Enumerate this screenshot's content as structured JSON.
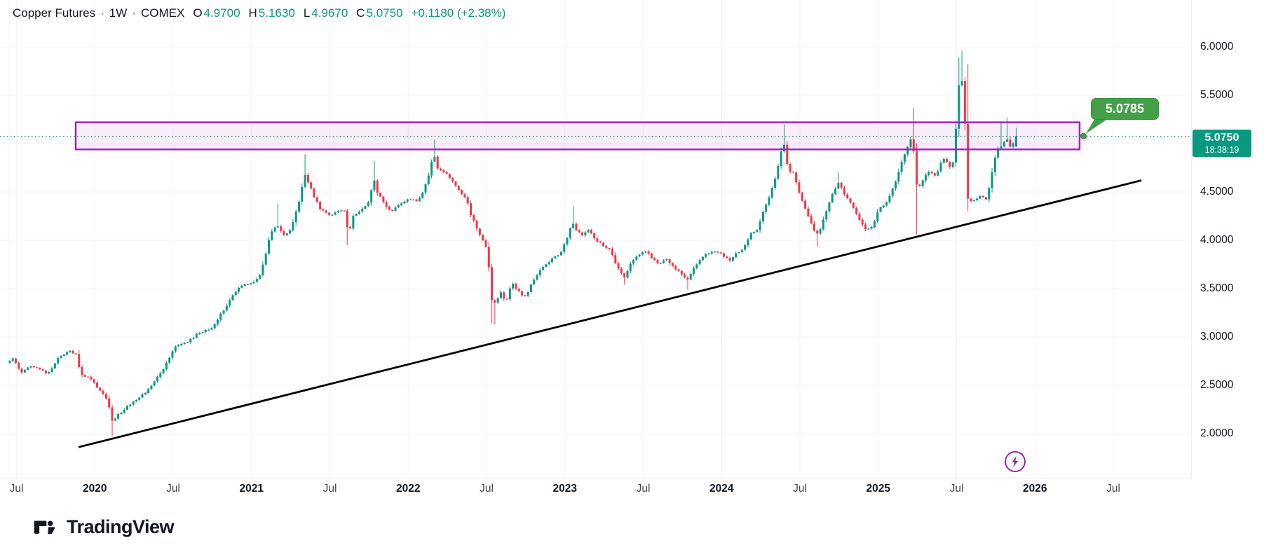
{
  "header": {
    "symbol": "Copper Futures",
    "separator": "·",
    "interval": "1W",
    "exchange": "COMEX",
    "ohlc": {
      "open_label": "O",
      "open": "4.9700",
      "high_label": "H",
      "high": "5.1630",
      "low_label": "L",
      "low": "4.9670",
      "close_label": "C",
      "close": "5.0750",
      "change": "+0.1180 (+2.38%)"
    }
  },
  "price_axis": {
    "ticks": [
      {
        "label": "6.0000",
        "value": 6.0
      },
      {
        "label": "5.5000",
        "value": 5.5
      },
      {
        "label": "4.5000",
        "value": 4.5
      },
      {
        "label": "4.0000",
        "value": 4.0
      },
      {
        "label": "3.5000",
        "value": 3.5
      },
      {
        "label": "3.0000",
        "value": 3.0
      },
      {
        "label": "2.5000",
        "value": 2.5
      },
      {
        "label": "2.0000",
        "value": 2.0
      }
    ],
    "last_price_badge": {
      "price": "5.0750",
      "countdown": "18:38:19"
    }
  },
  "time_axis": {
    "ticks": [
      {
        "label": "Jul",
        "t": 2019.5,
        "bold": false
      },
      {
        "label": "2020",
        "t": 2020.0,
        "bold": true
      },
      {
        "label": "Jul",
        "t": 2020.5,
        "bold": false
      },
      {
        "label": "2021",
        "t": 2021.0,
        "bold": true
      },
      {
        "label": "Jul",
        "t": 2021.5,
        "bold": false
      },
      {
        "label": "2022",
        "t": 2022.0,
        "bold": true
      },
      {
        "label": "Jul",
        "t": 2022.5,
        "bold": false
      },
      {
        "label": "2023",
        "t": 2023.0,
        "bold": true
      },
      {
        "label": "Jul",
        "t": 2023.5,
        "bold": false
      },
      {
        "label": "2024",
        "t": 2024.0,
        "bold": true
      },
      {
        "label": "Jul",
        "t": 2024.5,
        "bold": false
      },
      {
        "label": "2025",
        "t": 2025.0,
        "bold": true
      },
      {
        "label": "Jul",
        "t": 2025.5,
        "bold": false
      },
      {
        "label": "2026",
        "t": 2026.0,
        "bold": true
      },
      {
        "label": "Jul",
        "t": 2026.5,
        "bold": false
      }
    ]
  },
  "callout": {
    "label": "5.0785",
    "value": 5.0785,
    "t": 2026.31
  },
  "drawings": {
    "resistance_zone": {
      "price_top": 5.22,
      "price_bottom": 4.94,
      "t_start": 2019.878,
      "t_end": 2026.285
    },
    "trendline": {
      "t_start": 2019.896,
      "p_start": 1.86,
      "t_end": 2026.68,
      "p_end": 4.62
    },
    "quick_action_icon": "lightning-bolt"
  },
  "logo": {
    "text": "TradingView"
  },
  "theme": {
    "up": "#089981",
    "down": "#f23645",
    "grid": "#f0f3fa",
    "axis_border": "#e0e3eb",
    "zone_border": "#9c27b0",
    "zone_fill": "rgba(156,39,176,0.08)",
    "trendline": "#000000",
    "price_line": "#089981",
    "callout_green": "#43a047",
    "badge_bg": "#089981",
    "text": "#131722"
  },
  "chart_data": {
    "type": "candlestick",
    "title": "Copper Futures · 1W · COMEX",
    "xlabel": "",
    "ylabel": "",
    "x_range_years": [
      2019.45,
      2026.6
    ],
    "ylim": [
      1.8,
      6.1
    ],
    "grid": true,
    "last_price": 5.075,
    "resolution": "1 week per candle; closes below are piecewise-linear anchors read from the chart",
    "weekly_close_path": [
      [
        2019.43,
        2.72
      ],
      [
        2019.48,
        2.78
      ],
      [
        2019.53,
        2.62
      ],
      [
        2019.58,
        2.7
      ],
      [
        2019.64,
        2.67
      ],
      [
        2019.7,
        2.62
      ],
      [
        2019.775,
        2.8
      ],
      [
        2019.84,
        2.86
      ],
      [
        2019.88,
        2.82
      ],
      [
        2019.91,
        2.62
      ],
      [
        2019.98,
        2.56
      ],
      [
        2020.065,
        2.38
      ],
      [
        2020.084,
        2.36
      ],
      [
        2020.103,
        2.12
      ],
      [
        2020.141,
        2.18
      ],
      [
        2020.18,
        2.24
      ],
      [
        2020.245,
        2.33
      ],
      [
        2020.33,
        2.43
      ],
      [
        2020.42,
        2.62
      ],
      [
        2020.51,
        2.9
      ],
      [
        2020.6,
        2.96
      ],
      [
        2020.67,
        3.05
      ],
      [
        2020.74,
        3.08
      ],
      [
        2020.83,
        3.3
      ],
      [
        2020.92,
        3.52
      ],
      [
        2021.0,
        3.56
      ],
      [
        2021.05,
        3.62
      ],
      [
        2021.09,
        3.85
      ],
      [
        2021.12,
        4.08
      ],
      [
        2021.16,
        4.16
      ],
      [
        2021.21,
        4.05
      ],
      [
        2021.25,
        4.12
      ],
      [
        2021.315,
        4.45
      ],
      [
        2021.334,
        4.72
      ],
      [
        2021.353,
        4.63
      ],
      [
        2021.4,
        4.45
      ],
      [
        2021.44,
        4.32
      ],
      [
        2021.5,
        4.26
      ],
      [
        2021.54,
        4.29
      ],
      [
        2021.59,
        4.33
      ],
      [
        2021.62,
        4.06
      ],
      [
        2021.65,
        4.25
      ],
      [
        2021.7,
        4.31
      ],
      [
        2021.757,
        4.42
      ],
      [
        2021.776,
        4.68
      ],
      [
        2021.795,
        4.52
      ],
      [
        2021.86,
        4.36
      ],
      [
        2021.89,
        4.3
      ],
      [
        2021.94,
        4.36
      ],
      [
        2022.0,
        4.43
      ],
      [
        2022.06,
        4.41
      ],
      [
        2022.1,
        4.52
      ],
      [
        2022.142,
        4.72
      ],
      [
        2022.161,
        4.94
      ],
      [
        2022.18,
        4.76
      ],
      [
        2022.235,
        4.7
      ],
      [
        2022.28,
        4.62
      ],
      [
        2022.33,
        4.51
      ],
      [
        2022.37,
        4.43
      ],
      [
        2022.4,
        4.26
      ],
      [
        2022.44,
        4.12
      ],
      [
        2022.488,
        3.95
      ],
      [
        2022.507,
        3.92
      ],
      [
        2022.526,
        3.42
      ],
      [
        2022.545,
        3.32
      ],
      [
        2022.59,
        3.46
      ],
      [
        2022.625,
        3.36
      ],
      [
        2022.66,
        3.56
      ],
      [
        2022.71,
        3.46
      ],
      [
        2022.75,
        3.41
      ],
      [
        2022.79,
        3.56
      ],
      [
        2022.84,
        3.7
      ],
      [
        2022.88,
        3.76
      ],
      [
        2022.93,
        3.82
      ],
      [
        2022.97,
        3.86
      ],
      [
        2023.026,
        4.06
      ],
      [
        2023.045,
        4.21
      ],
      [
        2023.064,
        4.11
      ],
      [
        2023.11,
        4.06
      ],
      [
        2023.15,
        4.11
      ],
      [
        2023.2,
        4.0
      ],
      [
        2023.24,
        3.95
      ],
      [
        2023.29,
        3.9
      ],
      [
        2023.33,
        3.73
      ],
      [
        2023.38,
        3.61
      ],
      [
        2023.42,
        3.76
      ],
      [
        2023.47,
        3.85
      ],
      [
        2023.51,
        3.9
      ],
      [
        2023.56,
        3.81
      ],
      [
        2023.6,
        3.76
      ],
      [
        2023.645,
        3.81
      ],
      [
        2023.69,
        3.73
      ],
      [
        2023.735,
        3.66
      ],
      [
        2023.78,
        3.59
      ],
      [
        2023.82,
        3.71
      ],
      [
        2023.87,
        3.81
      ],
      [
        2023.91,
        3.86
      ],
      [
        2023.96,
        3.89
      ],
      [
        2024.0,
        3.86
      ],
      [
        2024.05,
        3.79
      ],
      [
        2024.09,
        3.86
      ],
      [
        2024.14,
        3.91
      ],
      [
        2024.18,
        4.06
      ],
      [
        2024.23,
        4.12
      ],
      [
        2024.27,
        4.31
      ],
      [
        2024.32,
        4.52
      ],
      [
        2024.373,
        4.83
      ],
      [
        2024.392,
        5.07
      ],
      [
        2024.411,
        4.85
      ],
      [
        2024.43,
        4.72
      ],
      [
        2024.46,
        4.7
      ],
      [
        2024.5,
        4.46
      ],
      [
        2024.54,
        4.31
      ],
      [
        2024.59,
        4.11
      ],
      [
        2024.62,
        4.06
      ],
      [
        2024.66,
        4.26
      ],
      [
        2024.7,
        4.46
      ],
      [
        2024.75,
        4.6
      ],
      [
        2024.79,
        4.46
      ],
      [
        2024.83,
        4.36
      ],
      [
        2024.88,
        4.21
      ],
      [
        2024.92,
        4.11
      ],
      [
        2024.97,
        4.16
      ],
      [
        2025.0,
        4.31
      ],
      [
        2025.06,
        4.41
      ],
      [
        2025.1,
        4.56
      ],
      [
        2025.15,
        4.81
      ],
      [
        2025.199,
        5.0
      ],
      [
        2025.219,
        5.1
      ],
      [
        2025.238,
        4.62
      ],
      [
        2025.257,
        4.52
      ],
      [
        2025.28,
        4.61
      ],
      [
        2025.32,
        4.71
      ],
      [
        2025.37,
        4.66
      ],
      [
        2025.41,
        4.86
      ],
      [
        2025.46,
        4.76
      ],
      [
        2025.488,
        4.85
      ],
      [
        2025.507,
        5.62
      ],
      [
        2025.526,
        5.58
      ],
      [
        2025.545,
        5.73
      ],
      [
        2025.565,
        4.45
      ],
      [
        2025.584,
        4.41
      ],
      [
        2025.61,
        4.41
      ],
      [
        2025.65,
        4.46
      ],
      [
        2025.69,
        4.43
      ],
      [
        2025.71,
        4.56
      ],
      [
        2025.738,
        4.81
      ],
      [
        2025.776,
        5.0
      ],
      [
        2025.795,
        4.95
      ],
      [
        2025.815,
        5.1
      ],
      [
        2025.834,
        4.95
      ],
      [
        2025.853,
        4.98
      ],
      [
        2025.88,
        5.075
      ]
    ],
    "key_wicks": [
      {
        "t": 2020.103,
        "l": 1.97
      },
      {
        "t": 2021.16,
        "h": 4.38
      },
      {
        "t": 2021.334,
        "h": 4.89
      },
      {
        "t": 2021.62,
        "l": 3.95
      },
      {
        "t": 2021.776,
        "h": 4.82
      },
      {
        "t": 2022.161,
        "h": 5.04
      },
      {
        "t": 2022.526,
        "l": 3.14
      },
      {
        "t": 2022.545,
        "l": 3.13
      },
      {
        "t": 2023.045,
        "h": 4.35
      },
      {
        "t": 2023.38,
        "l": 3.54
      },
      {
        "t": 2023.78,
        "l": 3.49
      },
      {
        "t": 2024.392,
        "h": 5.2
      },
      {
        "t": 2024.62,
        "l": 3.93
      },
      {
        "t": 2024.75,
        "h": 4.7
      },
      {
        "t": 2025.219,
        "h": 5.37
      },
      {
        "t": 2025.238,
        "l": 4.06
      },
      {
        "t": 2025.507,
        "h": 5.89
      },
      {
        "t": 2025.526,
        "h": 5.96
      },
      {
        "t": 2025.565,
        "h": 5.82,
        "l": 4.33
      },
      {
        "t": 2025.776,
        "h": 5.23
      },
      {
        "t": 2025.815,
        "h": 5.27
      }
    ],
    "last_candle": {
      "open": 4.97,
      "high": 5.163,
      "low": 4.967,
      "close": 5.075
    }
  }
}
